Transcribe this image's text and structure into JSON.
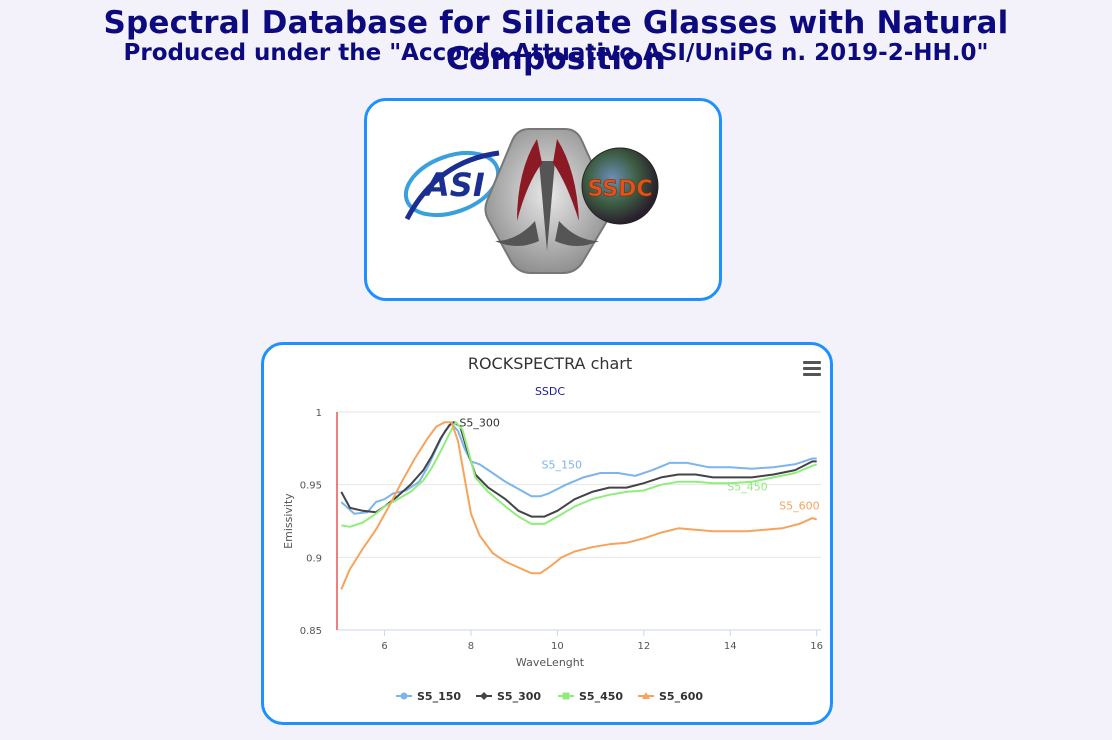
{
  "header": {
    "title": "Spectral Database for Silicate Glasses with Natural Composition",
    "subtitle": "Produced under the \"Accordo Attuativo ASI/UniPG n. 2019-2-HH.0\""
  },
  "logos": {
    "left_text": "ASI",
    "right_text": "SSDC"
  },
  "colors": {
    "accent_border": "#1e90ff",
    "title_navy": "#0c0a7e",
    "axis_red": "#e00000"
  },
  "chart_data": {
    "type": "line",
    "title": "ROCKSPECTRA chart",
    "subtitle": "SSDC",
    "xlabel": "WaveLenght",
    "ylabel": "Emissivity",
    "xlim": [
      4.9,
      16.1
    ],
    "ylim": [
      0.85,
      1.0
    ],
    "xticks": [
      6,
      8,
      10,
      12,
      14,
      16
    ],
    "yticks": [
      0.85,
      0.9,
      0.95,
      1
    ],
    "legend_position": "bottom-center",
    "grid": true,
    "series": [
      {
        "name": "S5_150",
        "color": "#7cb5ec",
        "marker": "circle",
        "x": [
          5.0,
          5.3,
          5.6,
          5.8,
          6.0,
          6.2,
          6.5,
          6.8,
          7.0,
          7.2,
          7.4,
          7.55,
          7.7,
          7.85,
          8.0,
          8.2,
          8.5,
          8.8,
          9.1,
          9.4,
          9.6,
          9.8,
          10.2,
          10.6,
          11.0,
          11.4,
          11.8,
          12.2,
          12.6,
          13.0,
          13.5,
          14.0,
          14.5,
          15.0,
          15.5,
          15.9,
          16.0
        ],
        "y": [
          0.938,
          0.93,
          0.931,
          0.938,
          0.94,
          0.944,
          0.946,
          0.952,
          0.962,
          0.975,
          0.987,
          0.992,
          0.987,
          0.975,
          0.966,
          0.964,
          0.958,
          0.952,
          0.947,
          0.942,
          0.942,
          0.944,
          0.95,
          0.955,
          0.958,
          0.958,
          0.956,
          0.96,
          0.965,
          0.965,
          0.962,
          0.962,
          0.961,
          0.962,
          0.964,
          0.968,
          0.968
        ]
      },
      {
        "name": "S5_300",
        "color": "#434348",
        "marker": "diamond",
        "x": [
          5.0,
          5.2,
          5.5,
          5.8,
          6.0,
          6.3,
          6.6,
          6.9,
          7.1,
          7.3,
          7.5,
          7.6,
          7.75,
          7.9,
          8.1,
          8.4,
          8.8,
          9.1,
          9.4,
          9.7,
          10.0,
          10.4,
          10.8,
          11.2,
          11.6,
          12.0,
          12.4,
          12.8,
          13.2,
          13.6,
          14.0,
          14.5,
          15.0,
          15.5,
          15.9,
          16.0
        ],
        "y": [
          0.945,
          0.934,
          0.932,
          0.931,
          0.935,
          0.942,
          0.95,
          0.96,
          0.97,
          0.982,
          0.991,
          0.993,
          0.99,
          0.975,
          0.957,
          0.948,
          0.94,
          0.932,
          0.928,
          0.928,
          0.932,
          0.94,
          0.945,
          0.948,
          0.948,
          0.951,
          0.955,
          0.957,
          0.957,
          0.955,
          0.955,
          0.955,
          0.957,
          0.96,
          0.966,
          0.966
        ]
      },
      {
        "name": "S5_450",
        "color": "#90ed7d",
        "marker": "square",
        "x": [
          5.0,
          5.2,
          5.5,
          5.8,
          6.0,
          6.3,
          6.6,
          6.9,
          7.1,
          7.3,
          7.5,
          7.65,
          7.8,
          7.95,
          8.1,
          8.4,
          8.8,
          9.1,
          9.4,
          9.7,
          10.0,
          10.4,
          10.8,
          11.2,
          11.6,
          12.0,
          12.4,
          12.8,
          13.2,
          13.6,
          14.0,
          14.5,
          15.0,
          15.5,
          15.9,
          16.0
        ],
        "y": [
          0.922,
          0.921,
          0.924,
          0.93,
          0.935,
          0.94,
          0.945,
          0.953,
          0.962,
          0.973,
          0.985,
          0.993,
          0.988,
          0.972,
          0.955,
          0.945,
          0.935,
          0.928,
          0.923,
          0.923,
          0.928,
          0.935,
          0.94,
          0.943,
          0.945,
          0.946,
          0.95,
          0.952,
          0.952,
          0.951,
          0.951,
          0.952,
          0.955,
          0.958,
          0.963,
          0.964
        ]
      },
      {
        "name": "S5_600",
        "color": "#f7a35c",
        "marker": "triangle",
        "x": [
          5.0,
          5.2,
          5.5,
          5.8,
          6.1,
          6.4,
          6.7,
          7.0,
          7.2,
          7.4,
          7.55,
          7.7,
          7.85,
          8.0,
          8.2,
          8.5,
          8.8,
          9.1,
          9.4,
          9.6,
          9.8,
          10.1,
          10.4,
          10.8,
          11.2,
          11.6,
          12.0,
          12.4,
          12.8,
          13.2,
          13.6,
          14.0,
          14.4,
          14.8,
          15.2,
          15.6,
          15.9,
          16.0
        ],
        "y": [
          0.878,
          0.892,
          0.906,
          0.919,
          0.935,
          0.952,
          0.968,
          0.982,
          0.99,
          0.993,
          0.993,
          0.98,
          0.955,
          0.93,
          0.915,
          0.903,
          0.897,
          0.893,
          0.889,
          0.889,
          0.893,
          0.9,
          0.904,
          0.907,
          0.909,
          0.91,
          0.913,
          0.917,
          0.92,
          0.919,
          0.918,
          0.918,
          0.918,
          0.919,
          0.92,
          0.923,
          0.927,
          0.926
        ]
      }
    ],
    "data_labels": [
      {
        "series": "S5_150",
        "text": "S5_150",
        "x": 10.1,
        "y": 0.961
      },
      {
        "series": "S5_300",
        "text": "S5_300",
        "x": 8.2,
        "y": 0.99
      },
      {
        "series": "S5_450",
        "text": "S5_450",
        "x": 14.4,
        "y": 0.946
      },
      {
        "series": "S5_600",
        "text": "S5_600",
        "x": 15.6,
        "y": 0.933
      }
    ]
  }
}
